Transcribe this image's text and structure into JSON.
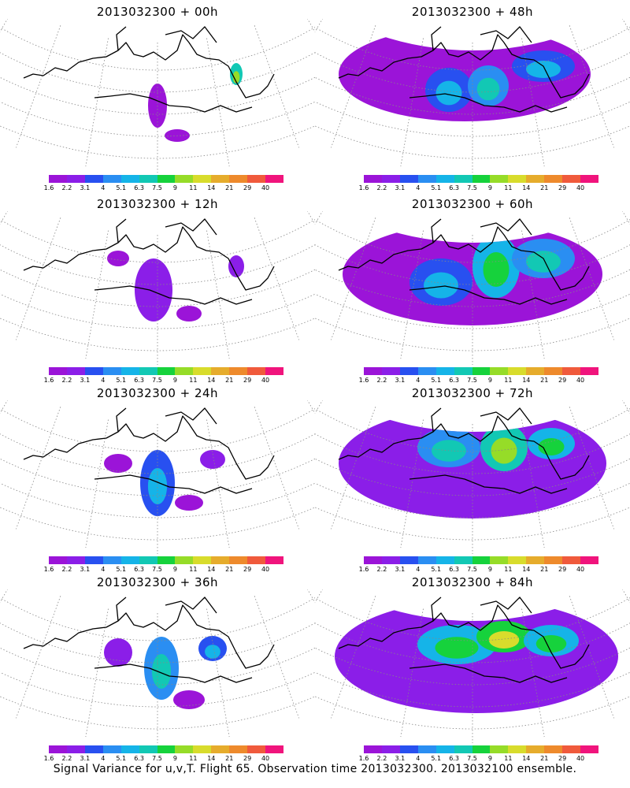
{
  "panels": [
    {
      "title": "2013032300 + 00h",
      "level": 0
    },
    {
      "title": "2013032300 + 48h",
      "level": 4
    },
    {
      "title": "2013032300 + 12h",
      "level": 1
    },
    {
      "title": "2013032300 + 60h",
      "level": 5
    },
    {
      "title": "2013032300 + 24h",
      "level": 2
    },
    {
      "title": "2013032300 + 72h",
      "level": 6
    },
    {
      "title": "2013032300 + 36h",
      "level": 3
    },
    {
      "title": "2013032300 + 84h",
      "level": 7
    }
  ],
  "colorbar": {
    "labels": [
      "1.6",
      "2.2",
      "3.1",
      "4",
      "5.1",
      "6.3",
      "7.5",
      "9",
      "11",
      "14",
      "21",
      "29",
      "40"
    ],
    "colors": [
      "#9b14d8",
      "#8b1ee8",
      "#2850f0",
      "#2a8ef2",
      "#15b4e8",
      "#12c8b4",
      "#16d23c",
      "#96dc28",
      "#d8dc2c",
      "#e6ac2c",
      "#ee8a2c",
      "#f05a3c",
      "#f0147c"
    ]
  },
  "footer": "Signal Variance for u,v,T. Flight 65. Observation time 2013032300. 2013032100 ensemble."
}
